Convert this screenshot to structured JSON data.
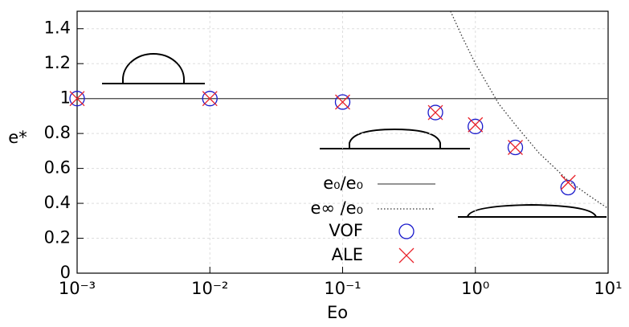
{
  "chart_data": {
    "type": "scatter",
    "xlabel": "Eo",
    "ylabel": "e*",
    "xscale": "log",
    "xlim": [
      0.001,
      10
    ],
    "ylim": [
      0,
      1.5
    ],
    "xticks": [
      {
        "value": 0.001,
        "label": "10⁻³"
      },
      {
        "value": 0.01,
        "label": "10⁻²"
      },
      {
        "value": 0.1,
        "label": "10⁻¹"
      },
      {
        "value": 1,
        "label": "10⁰"
      },
      {
        "value": 10,
        "label": "10¹"
      }
    ],
    "yticks": [
      0,
      0.2,
      0.4,
      0.6,
      0.8,
      1,
      1.2,
      1.4
    ],
    "grid": true,
    "series": [
      {
        "name": "e₀/e₀",
        "style": "line",
        "color": "#555555",
        "x": [
          0.001,
          10
        ],
        "values": [
          1,
          1
        ]
      },
      {
        "name": "e∞ /e₀",
        "style": "dotted",
        "color": "#333333",
        "x": [
          0.65,
          0.8,
          1,
          1.5,
          2,
          3,
          5,
          7,
          10
        ],
        "values": [
          1.5,
          1.35,
          1.2,
          0.97,
          0.85,
          0.69,
          0.53,
          0.45,
          0.37
        ]
      },
      {
        "name": "VOF",
        "style": "circle",
        "color": "#1a1acc",
        "x": [
          0.001,
          0.01,
          0.1,
          0.5,
          1,
          2,
          5
        ],
        "values": [
          1.0,
          1.0,
          0.98,
          0.92,
          0.84,
          0.72,
          0.49
        ]
      },
      {
        "name": "ALE",
        "style": "cross",
        "color": "#e8222a",
        "x": [
          0.001,
          0.01,
          0.1,
          0.5,
          1,
          2,
          5
        ],
        "values": [
          1.0,
          1.0,
          0.98,
          0.92,
          0.85,
          0.72,
          0.52
        ]
      }
    ]
  }
}
